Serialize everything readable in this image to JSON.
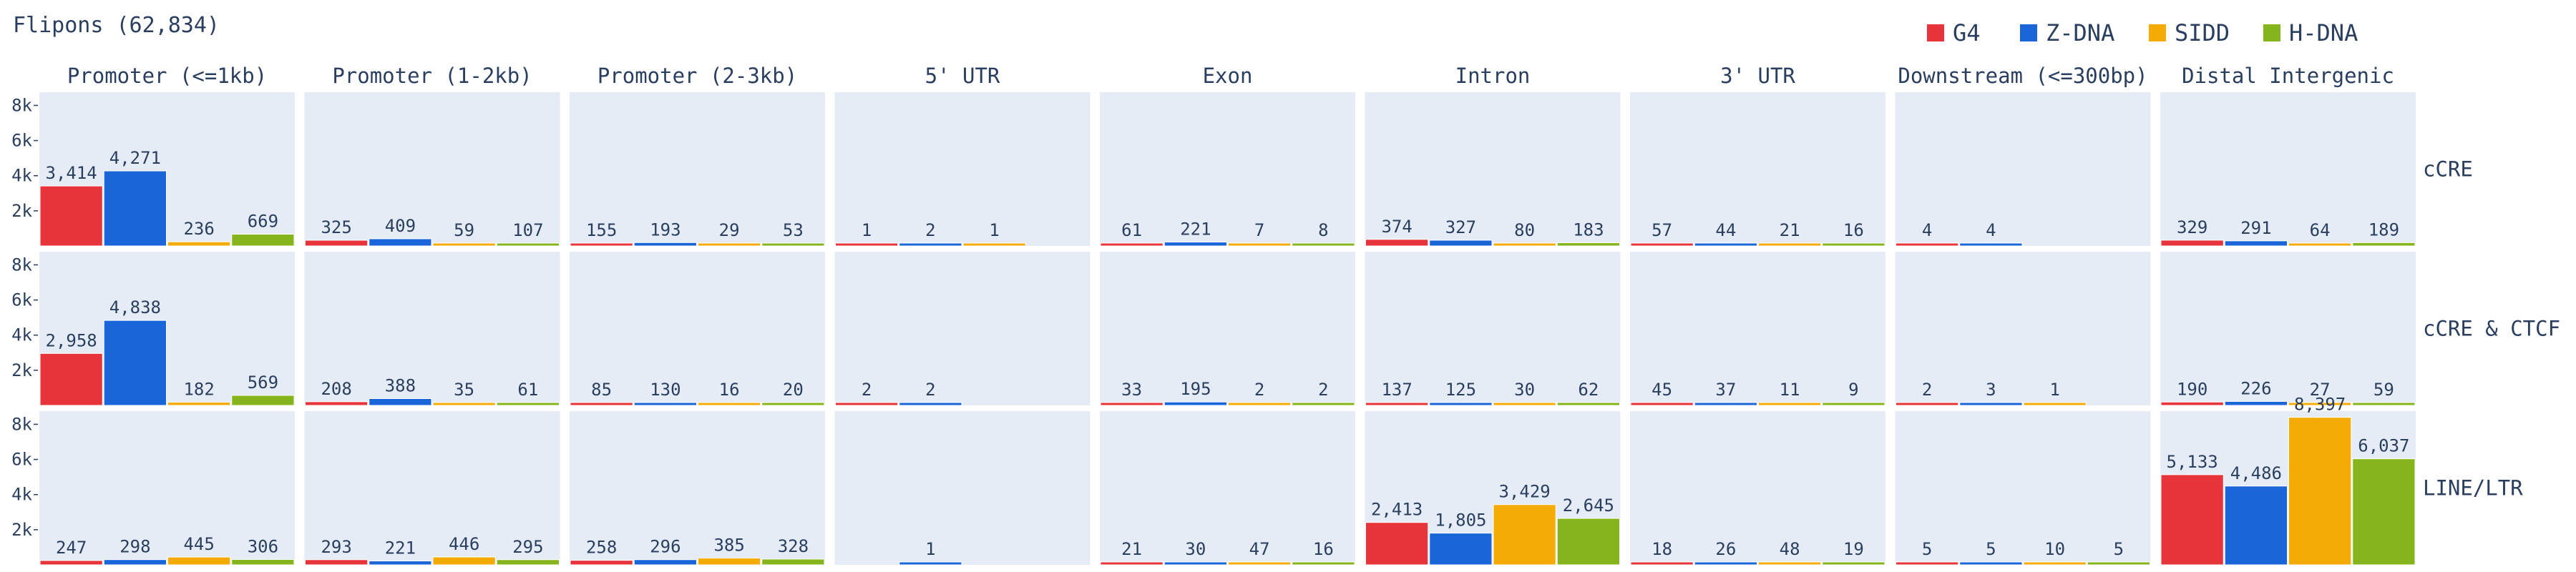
{
  "chart_data": {
    "type": "bar",
    "title": "Flipons (62,834)",
    "series": [
      {
        "name": "G4",
        "color": "#e6343a"
      },
      {
        "name": "Z-DNA",
        "color": "#1a66d9"
      },
      {
        "name": "SIDD",
        "color": "#f5ab05"
      },
      {
        "name": "H-DNA",
        "color": "#86b41c"
      }
    ],
    "columns": [
      "Promoter (<=1kb)",
      "Promoter (1-2kb)",
      "Promoter (2-3kb)",
      "5' UTR",
      "Exon",
      "Intron",
      "3' UTR",
      "Downstream (<=300bp)",
      "Distal Intergenic"
    ],
    "rows": [
      "cCRE",
      "cCRE & CTCF",
      "LINE/LTR"
    ],
    "ylim": [
      0,
      8750
    ],
    "yticks": [
      {
        "value": 2000,
        "label": "2k"
      },
      {
        "value": 4000,
        "label": "4k"
      },
      {
        "value": 6000,
        "label": "6k"
      },
      {
        "value": 8000,
        "label": "8k"
      }
    ],
    "panels": [
      {
        "row": "cCRE",
        "column": "Promoter (<=1kb)",
        "values": [
          3414,
          4271,
          236,
          669
        ],
        "labels": [
          "3,414",
          "4,271",
          "236",
          "669"
        ]
      },
      {
        "row": "cCRE",
        "column": "Promoter (1-2kb)",
        "values": [
          325,
          409,
          59,
          107
        ],
        "labels": [
          "325",
          "409",
          "59",
          "107"
        ]
      },
      {
        "row": "cCRE",
        "column": "Promoter (2-3kb)",
        "values": [
          155,
          193,
          29,
          53
        ],
        "labels": [
          "155",
          "193",
          "29",
          "53"
        ]
      },
      {
        "row": "cCRE",
        "column": "5' UTR",
        "values": [
          1,
          2,
          1,
          null
        ],
        "labels": [
          "1",
          "2",
          "1",
          ""
        ]
      },
      {
        "row": "cCRE",
        "column": "Exon",
        "values": [
          61,
          221,
          7,
          8
        ],
        "labels": [
          "61",
          "221",
          "7",
          "8"
        ]
      },
      {
        "row": "cCRE",
        "column": "Intron",
        "values": [
          374,
          327,
          80,
          183
        ],
        "labels": [
          "374",
          "327",
          "80",
          "183"
        ]
      },
      {
        "row": "cCRE",
        "column": "3' UTR",
        "values": [
          57,
          44,
          21,
          16
        ],
        "labels": [
          "57",
          "44",
          "21",
          "16"
        ]
      },
      {
        "row": "cCRE",
        "column": "Downstream (<=300bp)",
        "values": [
          4,
          4,
          null,
          null
        ],
        "labels": [
          "4",
          "4",
          "",
          ""
        ]
      },
      {
        "row": "cCRE",
        "column": "Distal Intergenic",
        "values": [
          329,
          291,
          64,
          189
        ],
        "labels": [
          "329",
          "291",
          "64",
          "189"
        ]
      },
      {
        "row": "cCRE & CTCF",
        "column": "Promoter (<=1kb)",
        "values": [
          2958,
          4838,
          182,
          569
        ],
        "labels": [
          "2,958",
          "4,838",
          "182",
          "569"
        ]
      },
      {
        "row": "cCRE & CTCF",
        "column": "Promoter (1-2kb)",
        "values": [
          208,
          388,
          35,
          61
        ],
        "labels": [
          "208",
          "388",
          "35",
          "61"
        ]
      },
      {
        "row": "cCRE & CTCF",
        "column": "Promoter (2-3kb)",
        "values": [
          85,
          130,
          16,
          20
        ],
        "labels": [
          "85",
          "130",
          "16",
          "20"
        ]
      },
      {
        "row": "cCRE & CTCF",
        "column": "5' UTR",
        "values": [
          2,
          2,
          null,
          null
        ],
        "labels": [
          "2",
          "2",
          "",
          ""
        ]
      },
      {
        "row": "cCRE & CTCF",
        "column": "Exon",
        "values": [
          33,
          195,
          2,
          2
        ],
        "labels": [
          "33",
          "195",
          "2",
          "2"
        ]
      },
      {
        "row": "cCRE & CTCF",
        "column": "Intron",
        "values": [
          137,
          125,
          30,
          62
        ],
        "labels": [
          "137",
          "125",
          "30",
          "62"
        ]
      },
      {
        "row": "cCRE & CTCF",
        "column": "3' UTR",
        "values": [
          45,
          37,
          11,
          9
        ],
        "labels": [
          "45",
          "37",
          "11",
          "9"
        ]
      },
      {
        "row": "cCRE & CTCF",
        "column": "Downstream (<=300bp)",
        "values": [
          2,
          3,
          1,
          null
        ],
        "labels": [
          "2",
          "3",
          "1",
          ""
        ]
      },
      {
        "row": "cCRE & CTCF",
        "column": "Distal Intergenic",
        "values": [
          190,
          226,
          27,
          59
        ],
        "labels": [
          "190",
          "226",
          "27",
          "59"
        ]
      },
      {
        "row": "LINE/LTR",
        "column": "Promoter (<=1kb)",
        "values": [
          247,
          298,
          445,
          306
        ],
        "labels": [
          "247",
          "298",
          "445",
          "306"
        ]
      },
      {
        "row": "LINE/LTR",
        "column": "Promoter (1-2kb)",
        "values": [
          293,
          221,
          446,
          295
        ],
        "labels": [
          "293",
          "221",
          "446",
          "295"
        ]
      },
      {
        "row": "LINE/LTR",
        "column": "Promoter (2-3kb)",
        "values": [
          258,
          296,
          385,
          328
        ],
        "labels": [
          "258",
          "296",
          "385",
          "328"
        ]
      },
      {
        "row": "LINE/LTR",
        "column": "5' UTR",
        "values": [
          null,
          1,
          null,
          null
        ],
        "labels": [
          "",
          "1",
          "",
          ""
        ]
      },
      {
        "row": "LINE/LTR",
        "column": "Exon",
        "values": [
          21,
          30,
          47,
          16
        ],
        "labels": [
          "21",
          "30",
          "47",
          "16"
        ]
      },
      {
        "row": "LINE/LTR",
        "column": "Intron",
        "values": [
          2413,
          1805,
          3429,
          2645
        ],
        "labels": [
          "2,413",
          "1,805",
          "3,429",
          "2,645"
        ]
      },
      {
        "row": "LINE/LTR",
        "column": "3' UTR",
        "values": [
          18,
          26,
          48,
          19
        ],
        "labels": [
          "18",
          "26",
          "48",
          "19"
        ]
      },
      {
        "row": "LINE/LTR",
        "column": "Downstream (<=300bp)",
        "values": [
          5,
          5,
          10,
          5
        ],
        "labels": [
          "5",
          "5",
          "10",
          "5"
        ]
      },
      {
        "row": "LINE/LTR",
        "column": "Distal Intergenic",
        "values": [
          5133,
          4486,
          8397,
          6037
        ],
        "labels": [
          "5,133",
          "4,486",
          "8,397",
          "6,037"
        ]
      }
    ],
    "legend": "top-right",
    "grid": false,
    "colors": {
      "panel_bg": "#e5ecf6",
      "text": "#2a3f5f",
      "bar_edge": "#ffffff"
    }
  }
}
